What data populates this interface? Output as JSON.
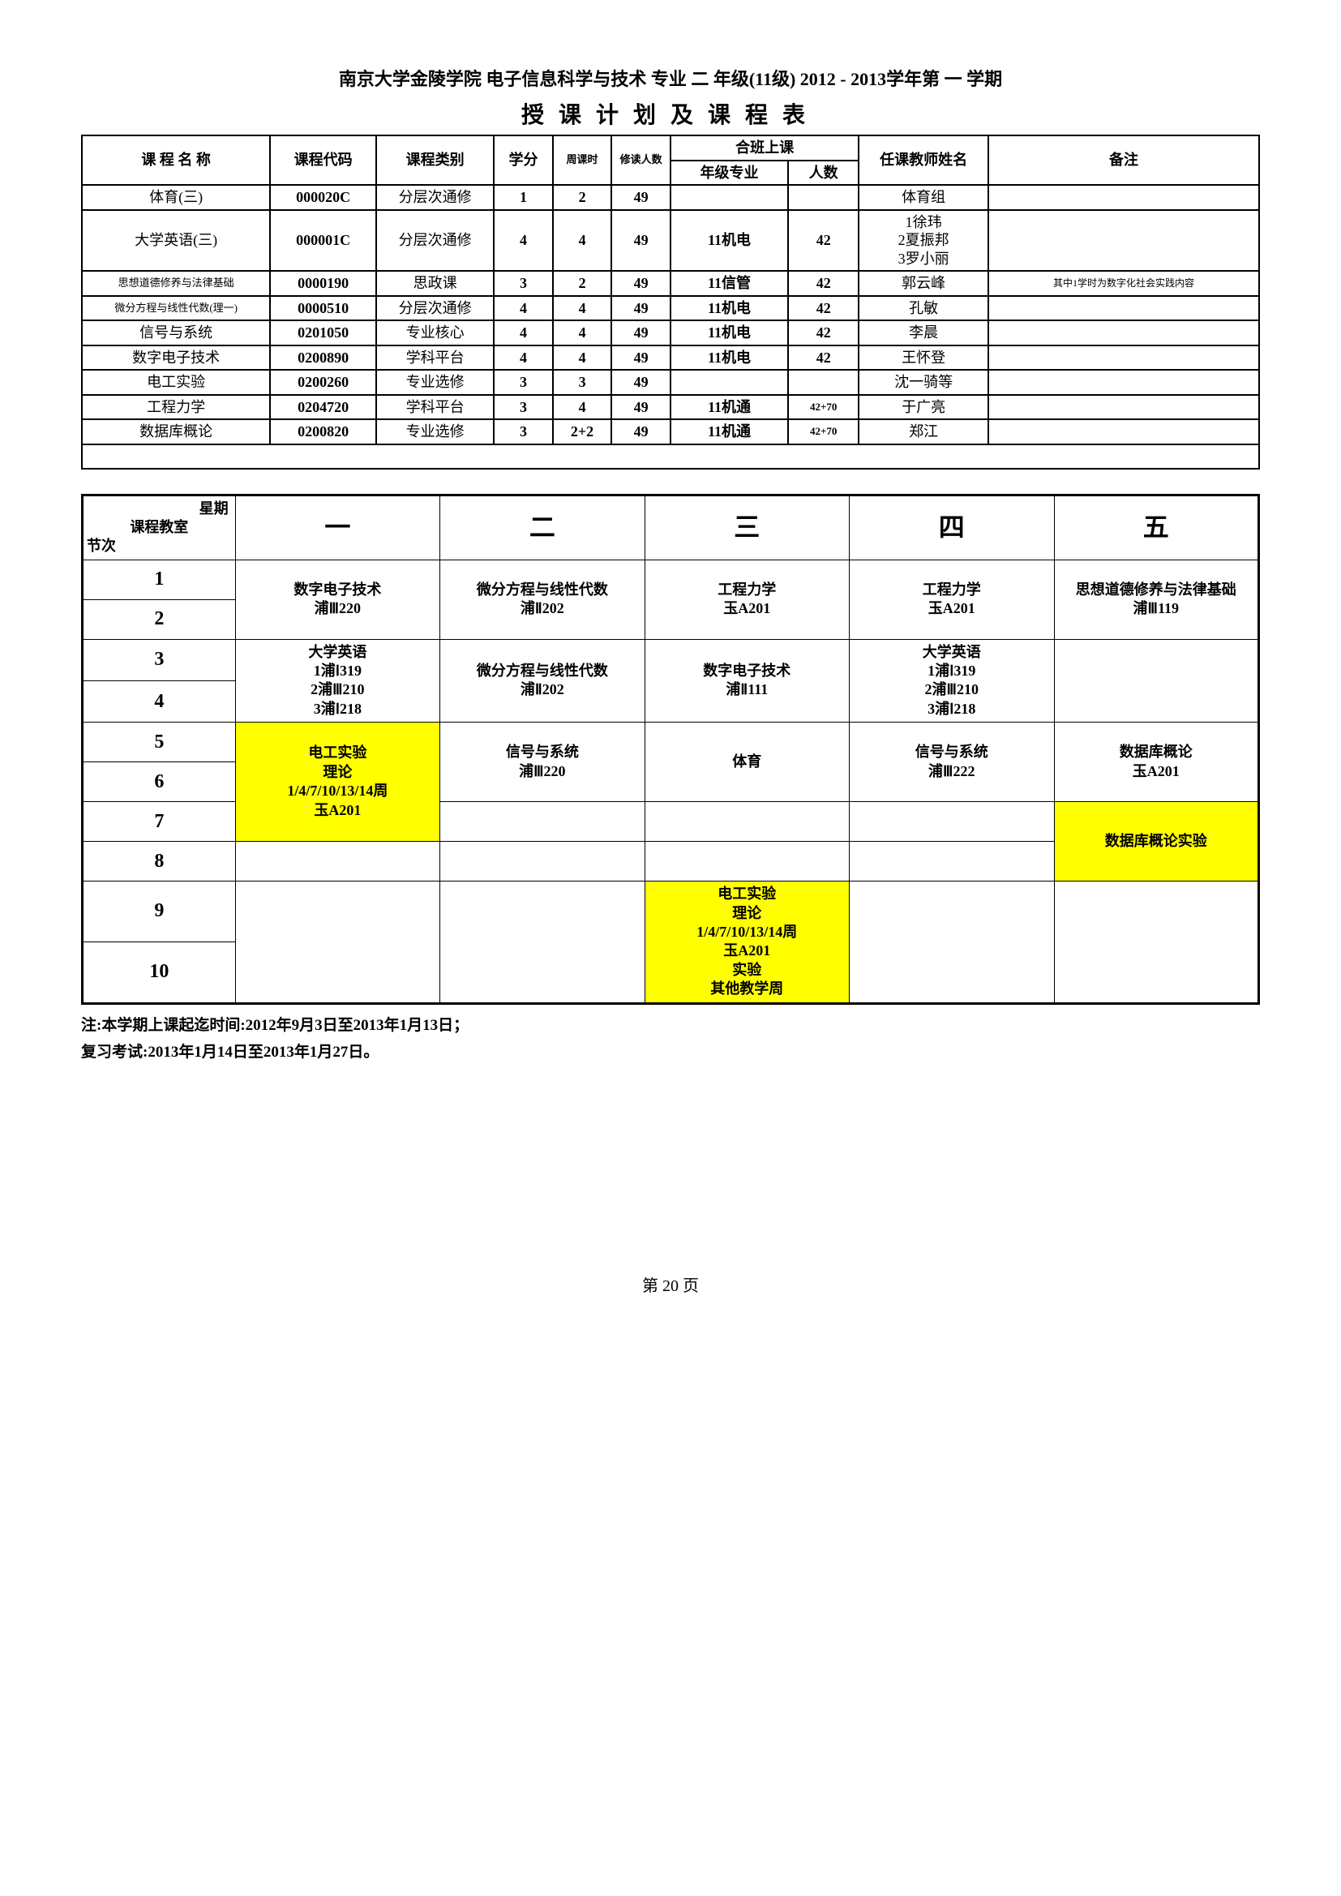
{
  "header": {
    "title1": "南京大学金陵学院 电子信息科学与技术 专业 二 年级(11级) 2012 - 2013学年第 一 学期",
    "title2": "授课计划及课程表"
  },
  "courseTable": {
    "headers": {
      "name": "课 程 名 称",
      "code": "课程代码",
      "type": "课程类别",
      "credit": "学分",
      "weekHour": "周课时",
      "enroll": "修读人数",
      "combined": "合班上课",
      "gradeMajor": "年级专业",
      "count": "人数",
      "teacher": "任课教师姓名",
      "remark": "备注"
    },
    "rows": [
      {
        "name": "体育(三)",
        "code": "000020C",
        "type": "分层次通修",
        "credit": "1",
        "wh": "2",
        "enroll": "49",
        "gm": "",
        "cnt": "",
        "teacher": "体育组",
        "remark": ""
      },
      {
        "name": "大学英语(三)",
        "code": "000001C",
        "type": "分层次通修",
        "credit": "4",
        "wh": "4",
        "enroll": "49",
        "gm": "11机电",
        "cnt": "42",
        "teacher": "1徐玮\n2夏振邦\n3罗小丽",
        "remark": ""
      },
      {
        "name": "思想道德修养与法律基础",
        "code": "0000190",
        "type": "思政课",
        "credit": "3",
        "wh": "2",
        "enroll": "49",
        "gm": "11信管",
        "cnt": "42",
        "teacher": "郭云峰",
        "remark": "其中1学时为数字化社会实践内容",
        "nameSmall": true,
        "remarkSmall": true
      },
      {
        "name": "微分方程与线性代数(理一)",
        "code": "0000510",
        "type": "分层次通修",
        "credit": "4",
        "wh": "4",
        "enroll": "49",
        "gm": "11机电",
        "cnt": "42",
        "teacher": "孔敏",
        "remark": "",
        "nameSmall": true
      },
      {
        "name": "信号与系统",
        "code": "0201050",
        "type": "专业核心",
        "credit": "4",
        "wh": "4",
        "enroll": "49",
        "gm": "11机电",
        "cnt": "42",
        "teacher": "李晨",
        "remark": ""
      },
      {
        "name": "数字电子技术",
        "code": "0200890",
        "type": "学科平台",
        "credit": "4",
        "wh": "4",
        "enroll": "49",
        "gm": "11机电",
        "cnt": "42",
        "teacher": "王怀登",
        "remark": ""
      },
      {
        "name": "电工实验",
        "code": "0200260",
        "type": "专业选修",
        "credit": "3",
        "wh": "3",
        "enroll": "49",
        "gm": "",
        "cnt": "",
        "teacher": "沈一骑等",
        "remark": ""
      },
      {
        "name": "工程力学",
        "code": "0204720",
        "type": "学科平台",
        "credit": "3",
        "wh": "4",
        "enroll": "49",
        "gm": "11机通",
        "cnt": "42+70",
        "teacher": "于广亮",
        "remark": "",
        "cntSmall": true
      },
      {
        "name": "数据库概论",
        "code": "0200820",
        "type": "专业选修",
        "credit": "3",
        "wh": "2+2",
        "enroll": "49",
        "gm": "11机通",
        "cnt": "42+70",
        "teacher": "郑江",
        "remark": "",
        "cntSmall": true
      }
    ]
  },
  "schedule": {
    "cornerTop": "星期",
    "cornerMid": "课程教室",
    "cornerBot": "节次",
    "days": [
      "一",
      "二",
      "三",
      "四",
      "五"
    ],
    "cells": {
      "r12": {
        "mon": "数字电子技术\n浦Ⅲ220",
        "tue": "微分方程与线性代数\n浦Ⅱ202",
        "wed": "工程力学\n玉A201",
        "thu": "工程力学\n玉A201",
        "fri": "思想道德修养与法律基础\n浦Ⅲ119"
      },
      "r34": {
        "mon": "大学英语\n1浦Ⅰ319\n2浦Ⅲ210\n3浦Ⅰ218",
        "tue": "微分方程与线性代数\n浦Ⅱ202",
        "wed": "数字电子技术\n浦Ⅱ111",
        "thu": "大学英语\n1浦Ⅰ319\n2浦Ⅲ210\n3浦Ⅰ218",
        "fri": ""
      },
      "r56": {
        "mon": "电工实验\n理论\n1/4/7/10/13/14周\n玉A201",
        "tue": "信号与系统\n浦Ⅲ220",
        "wed": "体育",
        "thu": "信号与系统\n浦Ⅲ222",
        "fri": "数据库概论\n玉A201"
      },
      "r78": {
        "mon": "",
        "tue": "",
        "wed": "",
        "thu": "",
        "fri": "数据库概论实验"
      },
      "r910": {
        "mon": "",
        "tue": "",
        "wed": "电工实验\n理论\n1/4/7/10/13/14周\n玉A201\n实验\n其他教学周",
        "thu": "",
        "fri": ""
      }
    },
    "highlight": {
      "r56_mon": true,
      "r78_fri": true,
      "r910_wed": true
    }
  },
  "notes": {
    "line1": "注:本学期上课起迄时间:2012年9月3日至2013年1月13日；",
    "line2": "复习考试:2013年1月14日至2013年1月27日。"
  },
  "page": "第 20 页"
}
